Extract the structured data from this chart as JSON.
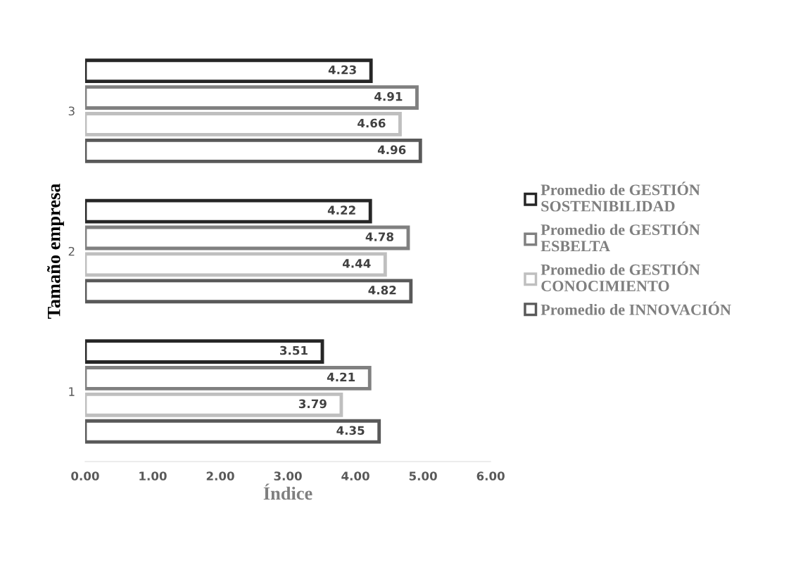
{
  "chart_data": {
    "type": "bar",
    "orientation": "horizontal",
    "xlabel": "Índice",
    "ylabel": "Tamaño empresa",
    "categories": [
      "3",
      "2",
      "1"
    ],
    "series": [
      {
        "name": "Promedio de GESTIÓN\nSOSTENIBILIDAD",
        "color": "#262626",
        "values": [
          4.23,
          4.22,
          3.51
        ]
      },
      {
        "name": "Promedio de GESTIÓN\nESBELTA",
        "color": "#808080",
        "values": [
          4.91,
          4.78,
          4.21
        ]
      },
      {
        "name": "Promedio de GESTIÓN\nCONOCIMIENTO",
        "color": "#bfbfbf",
        "values": [
          4.66,
          4.44,
          3.79
        ]
      },
      {
        "name": "Promedio de INNOVACIÓN",
        "color": "#595959",
        "values": [
          4.96,
          4.82,
          4.35
        ]
      }
    ],
    "xlim": [
      0,
      6
    ],
    "xticks": [
      {
        "value": 0,
        "label": "0.00"
      },
      {
        "value": 1,
        "label": "1.00"
      },
      {
        "value": 2,
        "label": "2.00"
      },
      {
        "value": 3,
        "label": "3.00"
      },
      {
        "value": 4,
        "label": "4.00"
      },
      {
        "value": 5,
        "label": "5.00"
      },
      {
        "value": 6,
        "label": "6.00"
      }
    ],
    "data_labels": true,
    "grid": false,
    "legend": "right"
  }
}
